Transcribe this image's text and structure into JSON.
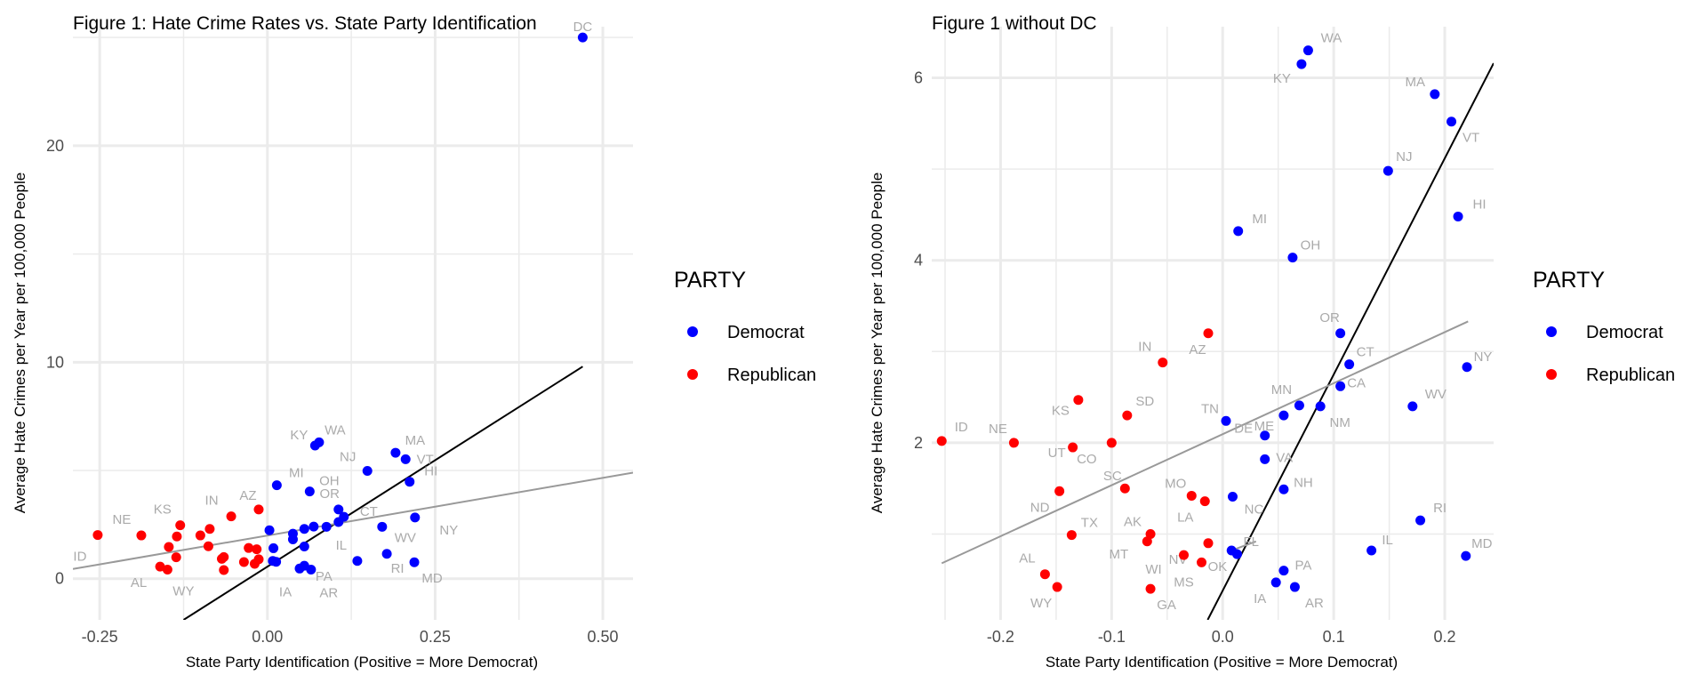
{
  "colors": {
    "Democrat": "#0000ff",
    "Republican": "#ff0000",
    "grid": "#ebebeb",
    "fit_black": "#000000",
    "fit_gray": "#999999",
    "label": "#aaaaaa"
  },
  "legend": {
    "title": "PARTY",
    "items": [
      "Democrat",
      "Republican"
    ]
  },
  "chart_data": [
    {
      "type": "scatter",
      "title": "Figure 1: Hate Crime Rates vs. State Party Identification",
      "xlabel": "State Party Identification (Positive = More Democrat)",
      "ylabel": "Average Hate Crimes per Year per 100,000 People",
      "xlim": [
        -0.29,
        0.545
      ],
      "ylim": [
        -1.9,
        25.5
      ],
      "xticks": [
        -0.25,
        0.0,
        0.25,
        0.5
      ],
      "xtick_labels": [
        "-0.25",
        "0.00",
        "0.25",
        "0.50"
      ],
      "yticks": [
        0,
        10,
        20
      ],
      "ytick_labels": [
        "0",
        "10",
        "20"
      ],
      "minor_x": [
        -0.125,
        0.125,
        0.375
      ],
      "minor_y": [
        5,
        15,
        25
      ],
      "fit_lines": [
        {
          "color": "black",
          "x": [
            -0.125,
            0.47
          ],
          "y": [
            -1.9,
            9.8
          ]
        },
        {
          "color": "gray",
          "x": [
            -0.29,
            0.545
          ],
          "y": [
            0.45,
            4.9
          ]
        }
      ],
      "labels_shown": [
        "DC",
        "WA",
        "KY",
        "MA",
        "NJ",
        "VT",
        "MI",
        "OR",
        "HI",
        "CT",
        "OH",
        "AZ",
        "IN",
        "KS",
        "NE",
        "ID",
        "NY",
        "WV",
        "IL",
        "PA",
        "RI",
        "MD",
        "IA",
        "AR",
        "AL",
        "WY"
      ],
      "points": [
        {
          "label": "DC",
          "party": "Democrat",
          "x": 0.47,
          "y": 25.0
        },
        {
          "label": "WA",
          "party": "Democrat",
          "x": 0.077,
          "y": 6.3
        },
        {
          "label": "KY",
          "party": "Democrat",
          "x": 0.071,
          "y": 6.15
        },
        {
          "label": "MA",
          "party": "Democrat",
          "x": 0.191,
          "y": 5.82
        },
        {
          "label": "VT",
          "party": "Democrat",
          "x": 0.206,
          "y": 5.52
        },
        {
          "label": "NJ",
          "party": "Democrat",
          "x": 0.149,
          "y": 4.98
        },
        {
          "label": "HI",
          "party": "Democrat",
          "x": 0.212,
          "y": 4.48
        },
        {
          "label": "MI",
          "party": "Democrat",
          "x": 0.014,
          "y": 4.32
        },
        {
          "label": "OH",
          "party": "Democrat",
          "x": 0.063,
          "y": 4.03
        },
        {
          "label": "OR",
          "party": "Democrat",
          "x": 0.106,
          "y": 3.2
        },
        {
          "label": "CT",
          "party": "Democrat",
          "x": 0.114,
          "y": 2.86
        },
        {
          "label": "NY",
          "party": "Democrat",
          "x": 0.22,
          "y": 2.83
        },
        {
          "label": "CA",
          "party": "Democrat",
          "x": 0.106,
          "y": 2.62
        },
        {
          "label": "WV",
          "party": "Democrat",
          "x": 0.171,
          "y": 2.4
        },
        {
          "label": "MN",
          "party": "Democrat",
          "x": 0.069,
          "y": 2.41
        },
        {
          "label": "NM",
          "party": "Democrat",
          "x": 0.088,
          "y": 2.4
        },
        {
          "label": "TN",
          "party": "Democrat",
          "x": 0.003,
          "y": 2.24
        },
        {
          "label": "ME",
          "party": "Democrat",
          "x": 0.055,
          "y": 2.3
        },
        {
          "label": "DE",
          "party": "Democrat",
          "x": 0.038,
          "y": 2.08
        },
        {
          "label": "VA",
          "party": "Democrat",
          "x": 0.038,
          "y": 1.82
        },
        {
          "label": "NH",
          "party": "Democrat",
          "x": 0.055,
          "y": 1.49
        },
        {
          "label": "NC",
          "party": "Democrat",
          "x": 0.009,
          "y": 1.41
        },
        {
          "label": "RI",
          "party": "Democrat",
          "x": 0.178,
          "y": 1.15
        },
        {
          "label": "IL",
          "party": "Democrat",
          "x": 0.134,
          "y": 0.82
        },
        {
          "label": "MD",
          "party": "Democrat",
          "x": 0.219,
          "y": 0.76
        },
        {
          "label": "FL",
          "party": "Democrat",
          "x": 0.008,
          "y": 0.82
        },
        {
          "label": "OK",
          "party": "Democrat",
          "x": 0.013,
          "y": 0.78
        },
        {
          "label": "PA",
          "party": "Democrat",
          "x": 0.055,
          "y": 0.6
        },
        {
          "label": "IA",
          "party": "Democrat",
          "x": 0.048,
          "y": 0.47
        },
        {
          "label": "AR",
          "party": "Democrat",
          "x": 0.065,
          "y": 0.42
        },
        {
          "label": "AZ",
          "party": "Republican",
          "x": -0.013,
          "y": 3.2
        },
        {
          "label": "IN",
          "party": "Republican",
          "x": -0.054,
          "y": 2.88
        },
        {
          "label": "KS",
          "party": "Republican",
          "x": -0.13,
          "y": 2.47
        },
        {
          "label": "SD",
          "party": "Republican",
          "x": -0.086,
          "y": 2.3
        },
        {
          "label": "ID",
          "party": "Republican",
          "x": -0.253,
          "y": 2.02
        },
        {
          "label": "NE",
          "party": "Republican",
          "x": -0.188,
          "y": 2.0
        },
        {
          "label": "UT",
          "party": "Republican",
          "x": -0.135,
          "y": 1.95
        },
        {
          "label": "CO",
          "party": "Republican",
          "x": -0.1,
          "y": 2.0
        },
        {
          "label": "SC",
          "party": "Republican",
          "x": -0.088,
          "y": 1.5
        },
        {
          "label": "ND",
          "party": "Republican",
          "x": -0.147,
          "y": 1.47
        },
        {
          "label": "MO",
          "party": "Republican",
          "x": -0.028,
          "y": 1.42
        },
        {
          "label": "LA",
          "party": "Republican",
          "x": -0.016,
          "y": 1.36
        },
        {
          "label": "TX",
          "party": "Republican",
          "x": -0.136,
          "y": 0.99
        },
        {
          "label": "AK",
          "party": "Republican",
          "x": -0.065,
          "y": 1.0
        },
        {
          "label": "MT",
          "party": "Republican",
          "x": -0.068,
          "y": 0.92
        },
        {
          "label": "NV",
          "party": "Republican",
          "x": -0.013,
          "y": 0.9
        },
        {
          "label": "WI",
          "party": "Republican",
          "x": -0.035,
          "y": 0.77
        },
        {
          "label": "MS",
          "party": "Republican",
          "x": -0.019,
          "y": 0.69
        },
        {
          "label": "AL",
          "party": "Republican",
          "x": -0.16,
          "y": 0.56
        },
        {
          "label": "WY",
          "party": "Republican",
          "x": -0.149,
          "y": 0.42
        },
        {
          "label": "GA",
          "party": "Republican",
          "x": -0.065,
          "y": 0.4
        }
      ]
    },
    {
      "type": "scatter",
      "title": "Figure 1 without DC",
      "xlabel": "State Party Identification (Positive = More Democrat)",
      "ylabel": "Average Hate Crimes per Year per 100,000 People",
      "xlim": [
        -0.262,
        0.244
      ],
      "ylim": [
        0.06,
        6.56
      ],
      "xticks": [
        -0.2,
        -0.1,
        0.0,
        0.1,
        0.2
      ],
      "xtick_labels": [
        "-0.2",
        "-0.1",
        "0.0",
        "0.1",
        "0.2"
      ],
      "yticks": [
        2,
        4,
        6
      ],
      "ytick_labels": [
        "2",
        "4",
        "6"
      ],
      "minor_x": [
        -0.25,
        -0.15,
        -0.05,
        0.05,
        0.15
      ],
      "minor_y": [
        1,
        3,
        5
      ],
      "fit_lines": [
        {
          "color": "black",
          "x": [
            -0.0135,
            0.244
          ],
          "y": [
            0.06,
            6.16
          ]
        },
        {
          "color": "gray",
          "x": [
            -0.253,
            0.221
          ],
          "y": [
            0.68,
            3.33
          ]
        },
        {
          "color": "gray",
          "x": [
            0.008,
            0.03
          ],
          "y": [
            0.82,
            0.92
          ]
        }
      ],
      "labels_shown": [
        "WA",
        "KY",
        "MA",
        "VT",
        "NJ",
        "HI",
        "MI",
        "OH",
        "OR",
        "CT",
        "NY",
        "CA",
        "WV",
        "MN",
        "NM",
        "TN",
        "ME",
        "DE",
        "VA",
        "NH",
        "NC",
        "RI",
        "IL",
        "MD",
        "FL",
        "OK",
        "PA",
        "IA",
        "AR",
        "AZ",
        "IN",
        "KS",
        "SD",
        "ID",
        "NE",
        "UT",
        "CO",
        "SC",
        "MO",
        "ND",
        "LA",
        "TX",
        "AK",
        "MT",
        "NV",
        "WI",
        "MS",
        "AL",
        "WY",
        "GA"
      ],
      "points": [
        {
          "label": "WA",
          "party": "Democrat",
          "x": 0.077,
          "y": 6.3
        },
        {
          "label": "KY",
          "party": "Democrat",
          "x": 0.071,
          "y": 6.15
        },
        {
          "label": "MA",
          "party": "Democrat",
          "x": 0.191,
          "y": 5.82
        },
        {
          "label": "VT",
          "party": "Democrat",
          "x": 0.206,
          "y": 5.52
        },
        {
          "label": "NJ",
          "party": "Democrat",
          "x": 0.149,
          "y": 4.98
        },
        {
          "label": "HI",
          "party": "Democrat",
          "x": 0.212,
          "y": 4.48
        },
        {
          "label": "MI",
          "party": "Democrat",
          "x": 0.014,
          "y": 4.32
        },
        {
          "label": "OH",
          "party": "Democrat",
          "x": 0.063,
          "y": 4.03
        },
        {
          "label": "OR",
          "party": "Democrat",
          "x": 0.106,
          "y": 3.2
        },
        {
          "label": "CT",
          "party": "Democrat",
          "x": 0.114,
          "y": 2.86
        },
        {
          "label": "NY",
          "party": "Democrat",
          "x": 0.22,
          "y": 2.83
        },
        {
          "label": "CA",
          "party": "Democrat",
          "x": 0.106,
          "y": 2.62
        },
        {
          "label": "WV",
          "party": "Democrat",
          "x": 0.171,
          "y": 2.4
        },
        {
          "label": "MN",
          "party": "Democrat",
          "x": 0.069,
          "y": 2.41
        },
        {
          "label": "NM",
          "party": "Democrat",
          "x": 0.088,
          "y": 2.4
        },
        {
          "label": "TN",
          "party": "Democrat",
          "x": 0.003,
          "y": 2.24
        },
        {
          "label": "ME",
          "party": "Democrat",
          "x": 0.055,
          "y": 2.3
        },
        {
          "label": "DE",
          "party": "Democrat",
          "x": 0.038,
          "y": 2.08
        },
        {
          "label": "VA",
          "party": "Democrat",
          "x": 0.038,
          "y": 1.82
        },
        {
          "label": "NH",
          "party": "Democrat",
          "x": 0.055,
          "y": 1.49
        },
        {
          "label": "NC",
          "party": "Democrat",
          "x": 0.009,
          "y": 1.41
        },
        {
          "label": "RI",
          "party": "Democrat",
          "x": 0.178,
          "y": 1.15
        },
        {
          "label": "IL",
          "party": "Democrat",
          "x": 0.134,
          "y": 0.82
        },
        {
          "label": "MD",
          "party": "Democrat",
          "x": 0.219,
          "y": 0.76
        },
        {
          "label": "FL",
          "party": "Democrat",
          "x": 0.008,
          "y": 0.82
        },
        {
          "label": "OK",
          "party": "Democrat",
          "x": 0.013,
          "y": 0.78
        },
        {
          "label": "PA",
          "party": "Democrat",
          "x": 0.055,
          "y": 0.6
        },
        {
          "label": "IA",
          "party": "Democrat",
          "x": 0.048,
          "y": 0.47
        },
        {
          "label": "AR",
          "party": "Democrat",
          "x": 0.065,
          "y": 0.42
        },
        {
          "label": "AZ",
          "party": "Republican",
          "x": -0.013,
          "y": 3.2
        },
        {
          "label": "IN",
          "party": "Republican",
          "x": -0.054,
          "y": 2.88
        },
        {
          "label": "KS",
          "party": "Republican",
          "x": -0.13,
          "y": 2.47
        },
        {
          "label": "SD",
          "party": "Republican",
          "x": -0.086,
          "y": 2.3
        },
        {
          "label": "ID",
          "party": "Republican",
          "x": -0.253,
          "y": 2.02
        },
        {
          "label": "NE",
          "party": "Republican",
          "x": -0.188,
          "y": 2.0
        },
        {
          "label": "UT",
          "party": "Republican",
          "x": -0.135,
          "y": 1.95
        },
        {
          "label": "CO",
          "party": "Republican",
          "x": -0.1,
          "y": 2.0
        },
        {
          "label": "SC",
          "party": "Republican",
          "x": -0.088,
          "y": 1.5
        },
        {
          "label": "ND",
          "party": "Republican",
          "x": -0.147,
          "y": 1.47
        },
        {
          "label": "MO",
          "party": "Republican",
          "x": -0.028,
          "y": 1.42
        },
        {
          "label": "LA",
          "party": "Republican",
          "x": -0.016,
          "y": 1.36
        },
        {
          "label": "TX",
          "party": "Republican",
          "x": -0.136,
          "y": 0.99
        },
        {
          "label": "AK",
          "party": "Republican",
          "x": -0.065,
          "y": 1.0
        },
        {
          "label": "MT",
          "party": "Republican",
          "x": -0.068,
          "y": 0.92
        },
        {
          "label": "NV",
          "party": "Republican",
          "x": -0.013,
          "y": 0.9
        },
        {
          "label": "WI",
          "party": "Republican",
          "x": -0.035,
          "y": 0.77
        },
        {
          "label": "MS",
          "party": "Republican",
          "x": -0.019,
          "y": 0.69
        },
        {
          "label": "AL",
          "party": "Republican",
          "x": -0.16,
          "y": 0.56
        },
        {
          "label": "WY",
          "party": "Republican",
          "x": -0.149,
          "y": 0.42
        },
        {
          "label": "GA",
          "party": "Republican",
          "x": -0.065,
          "y": 0.4
        }
      ]
    }
  ]
}
